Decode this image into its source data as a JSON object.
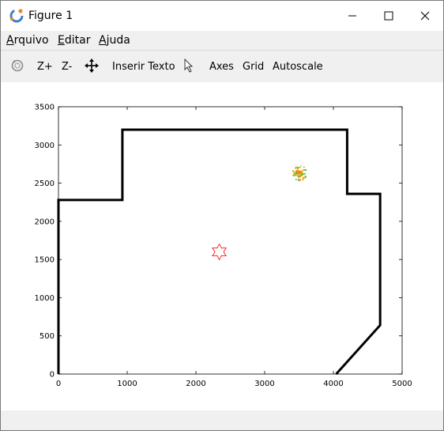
{
  "window": {
    "title": "Figure 1",
    "minimize_label": "—",
    "maximize_label": "☐",
    "close_label": "✕"
  },
  "menu": {
    "items": [
      {
        "label_ul": "A",
        "label_rest": "rquivo"
      },
      {
        "label_ul": "E",
        "label_rest": "ditar"
      },
      {
        "label_ul": "A",
        "label_rest": "juda"
      }
    ]
  },
  "toolbar": {
    "rotate_icon": "rotate-icon",
    "zoom_in": "Z+",
    "zoom_out": "Z-",
    "pan_icon": "pan-arrows-icon",
    "insert_text": "Inserir Texto",
    "select_icon": "cursor-arrow-icon",
    "axes": "Axes",
    "grid": "Grid",
    "autoscale": "Autoscale"
  },
  "chart_data": {
    "type": "line",
    "xlim": [
      0,
      5000
    ],
    "ylim": [
      0,
      3500
    ],
    "x_ticks": [
      0,
      1000,
      2000,
      3000,
      4000,
      5000
    ],
    "y_ticks": [
      0,
      500,
      1000,
      1500,
      2000,
      2500,
      3000,
      3500
    ],
    "grid": false,
    "series": [
      {
        "kind": "polyline",
        "color": "#000000",
        "x": [
          0,
          0,
          930,
          930,
          4200,
          4200,
          4680,
          4680,
          4040
        ],
        "y": [
          0,
          2280,
          2280,
          3200,
          3200,
          2360,
          2360,
          640,
          0
        ]
      },
      {
        "kind": "marker-star",
        "color": "#ff0000",
        "x": [
          2340
        ],
        "y": [
          1600
        ]
      },
      {
        "kind": "scatter-cluster",
        "colors": [
          "#c8c800",
          "#ff8000",
          "#40b040"
        ],
        "center": [
          3500,
          2640
        ]
      }
    ]
  }
}
